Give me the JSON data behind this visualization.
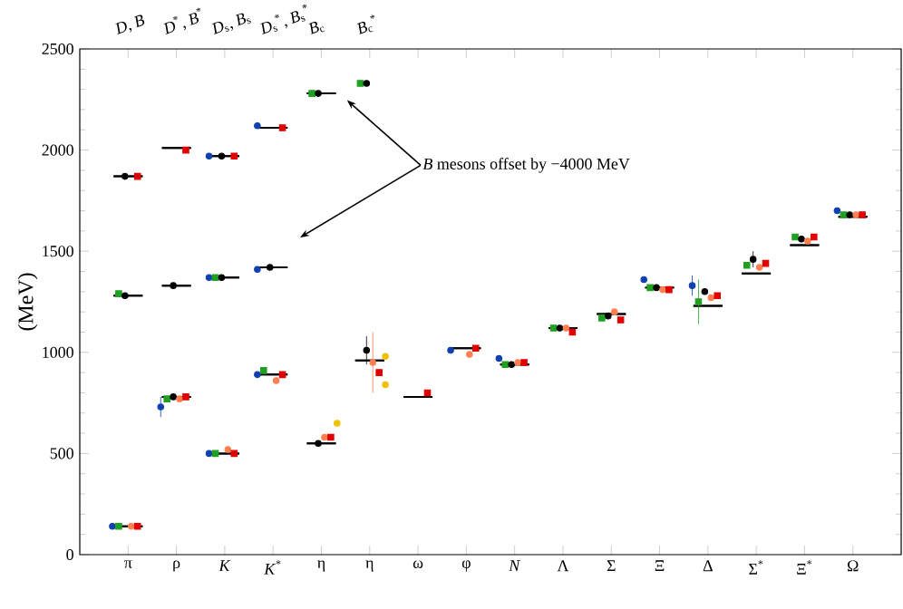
{
  "chart_data": {
    "type": "scatter",
    "ylabel": "(MeV)",
    "categories": [
      "π",
      "ρ",
      "*K*",
      "*K*$^{*}$",
      "η",
      "η",
      "ω",
      "φ",
      "*N*",
      "Λ",
      "Σ",
      "Ξ",
      "Δ",
      "Σ$^{*}$",
      "Ξ$^{*}$",
      "Ω"
    ],
    "ylim": [
      0,
      2500
    ],
    "yticks": [
      0,
      500,
      1000,
      1500,
      2000,
      2500
    ],
    "annotations": [
      "*B* mesons offset by −4000 MeV",
      "*D*, *B*",
      "*D*$^{*}$, *B*$^{*}$",
      "*D*$_{s}$, *B*$_{s}$",
      "*D*$_{s}$$^{*}$, *B*$_{s}$$^{*}$",
      "*B*$_{c}$",
      "*B*$_{c}$$^{*}$"
    ],
    "series": [
      {
        "type": "box",
        "color": "#000000",
        "boxes": [
          {
            "low": 140,
            "q1": 140,
            "median": 140,
            "q3": 140,
            "high": 140
          },
          {
            "low": 780,
            "q1": 780,
            "median": 780,
            "q3": 780,
            "high": 780
          },
          {
            "low": 500,
            "q1": 500,
            "median": 500,
            "q3": 500,
            "high": 500
          },
          {
            "low": 890,
            "q1": 890,
            "median": 890,
            "q3": 890,
            "high": 890
          },
          {
            "low": 550,
            "q1": 550,
            "median": 550,
            "q3": 550,
            "high": 550
          },
          {
            "low": 960,
            "q1": 960,
            "median": 960,
            "q3": 960,
            "high": 960
          },
          {
            "low": 780,
            "q1": 780,
            "median": 780,
            "q3": 780,
            "high": 780
          },
          {
            "low": 1020,
            "q1": 1020,
            "median": 1020,
            "q3": 1020,
            "high": 1020
          },
          {
            "low": 940,
            "q1": 940,
            "median": 940,
            "q3": 940,
            "high": 940
          },
          {
            "low": 1120,
            "q1": 1120,
            "median": 1120,
            "q3": 1120,
            "high": 1120
          },
          {
            "low": 1190,
            "q1": 1190,
            "median": 1190,
            "q3": 1190,
            "high": 1190
          },
          {
            "low": 1320,
            "q1": 1320,
            "median": 1320,
            "q3": 1320,
            "high": 1320
          },
          {
            "low": 1230,
            "q1": 1230,
            "median": 1230,
            "q3": 1230,
            "high": 1230
          },
          {
            "low": 1390,
            "q1": 1390,
            "median": 1390,
            "q3": 1390,
            "high": 1390
          },
          {
            "low": 1530,
            "q1": 1530,
            "median": 1530,
            "q3": 1530,
            "high": 1530
          },
          {
            "low": 1670,
            "q1": 1670,
            "median": 1670,
            "q3": 1670,
            "high": 1670
          }
        ]
      },
      {
        "type": "box",
        "color": "#000000",
        "boxes": [
          {
            "low": 1870,
            "q1": 1870,
            "median": 1870,
            "q3": 1870,
            "high": 1870
          },
          {
            "low": 2010,
            "q1": 2010,
            "median": 2010,
            "q3": 2010,
            "high": 2010
          },
          {
            "low": 1970,
            "q1": 1970,
            "median": 1970,
            "q3": 1970,
            "high": 1970
          },
          {
            "low": 2110,
            "q1": 2110,
            "median": 2110,
            "q3": 2110,
            "high": 2110
          },
          {
            "low": 2280,
            "q1": 2280,
            "median": 2280,
            "q3": 2280,
            "high": 2280
          },
          null,
          null,
          null,
          null,
          null,
          null,
          null,
          null,
          null,
          null,
          null
        ]
      },
      {
        "type": "box",
        "color": "#000000",
        "boxes": [
          {
            "low": 1280,
            "q1": 1280,
            "median": 1280,
            "q3": 1280,
            "high": 1280
          },
          {
            "low": 1330,
            "q1": 1330,
            "median": 1330,
            "q3": 1330,
            "high": 1330
          },
          {
            "low": 1370,
            "q1": 1370,
            "median": 1370,
            "q3": 1370,
            "high": 1370
          },
          {
            "low": 1420,
            "q1": 1420,
            "median": 1420,
            "q3": 1420,
            "high": 1420
          },
          null,
          null,
          null,
          null,
          null,
          null,
          null,
          null,
          null,
          null,
          null,
          null
        ]
      },
      {
        "color": "#1040b0",
        "marker": "circle",
        "values": [
          140,
          730,
          500,
          890,
          null,
          null,
          null,
          1010,
          970,
          null,
          null,
          1360,
          1330,
          null,
          null,
          1700
        ],
        "errors": [
          null,
          50,
          null,
          null,
          null,
          null,
          null,
          null,
          null,
          null,
          null,
          null,
          50,
          null,
          null,
          null
        ]
      },
      {
        "color": "#1040b0",
        "marker": "circle",
        "values": [
          null,
          null,
          1970,
          2120,
          null,
          null,
          null,
          null,
          null,
          null,
          null,
          null,
          null,
          null,
          null,
          null
        ]
      },
      {
        "color": "#1040b0",
        "marker": "circle",
        "values": [
          null,
          null,
          1370,
          1410,
          null,
          null,
          null,
          null,
          null,
          null,
          null,
          null,
          null,
          null,
          null,
          null
        ]
      },
      {
        "color": "#20a020",
        "marker": "square",
        "values": [
          140,
          770,
          500,
          910,
          null,
          null,
          null,
          null,
          940,
          1120,
          1170,
          1320,
          1250,
          1430,
          1570,
          1680
        ],
        "errors": [
          null,
          null,
          null,
          null,
          null,
          null,
          null,
          null,
          null,
          null,
          null,
          null,
          110,
          null,
          null,
          null
        ]
      },
      {
        "color": "#20a020",
        "marker": "square",
        "values": [
          1290,
          null,
          1370,
          null,
          2280,
          2330,
          null,
          null,
          null,
          null,
          null,
          null,
          null,
          null,
          null,
          null
        ]
      },
      {
        "color": "#000000",
        "marker": "circle",
        "values": [
          null,
          780,
          null,
          null,
          550,
          1010,
          null,
          null,
          940,
          1120,
          1180,
          1320,
          1300,
          1460,
          1560,
          1680
        ],
        "errors": [
          null,
          null,
          null,
          null,
          null,
          70,
          null,
          null,
          null,
          null,
          null,
          null,
          null,
          40,
          null,
          null
        ]
      },
      {
        "color": "#000000",
        "marker": "circle",
        "values": [
          1870,
          null,
          1970,
          null,
          2280,
          2330,
          null,
          null,
          null,
          null,
          null,
          null,
          null,
          null,
          null,
          null
        ]
      },
      {
        "color": "#000000",
        "marker": "circle",
        "values": [
          1280,
          1330,
          1370,
          1420,
          null,
          null,
          null,
          null,
          null,
          null,
          null,
          null,
          null,
          null,
          null,
          null
        ]
      },
      {
        "color": "#ff7f50",
        "marker": "circle",
        "values": [
          140,
          770,
          520,
          860,
          580,
          950,
          null,
          990,
          950,
          1120,
          1200,
          1310,
          1270,
          1420,
          1550,
          1680
        ],
        "errors": [
          null,
          null,
          null,
          null,
          null,
          150,
          null,
          null,
          null,
          null,
          null,
          null,
          null,
          null,
          null,
          null
        ]
      },
      {
        "color": "#e00000",
        "marker": "square",
        "values": [
          140,
          780,
          500,
          890,
          580,
          900,
          800,
          1020,
          950,
          1100,
          1160,
          1310,
          1280,
          1440,
          1570,
          1680
        ]
      },
      {
        "color": "#e00000",
        "marker": "square",
        "values": [
          1870,
          2000,
          1970,
          2110,
          null,
          null,
          null,
          null,
          null,
          null,
          null,
          null,
          null,
          null,
          null,
          null
        ]
      },
      {
        "color": "#f0c000",
        "marker": "circle",
        "values": [
          null,
          null,
          null,
          null,
          650,
          980,
          null,
          null,
          null,
          null,
          null,
          null,
          null,
          null,
          null,
          null
        ]
      },
      {
        "color": "#f0c000",
        "marker": "circle",
        "values": [
          null,
          null,
          null,
          null,
          null,
          840,
          null,
          null,
          null,
          null,
          null,
          null,
          null,
          null,
          null,
          null
        ]
      }
    ]
  }
}
